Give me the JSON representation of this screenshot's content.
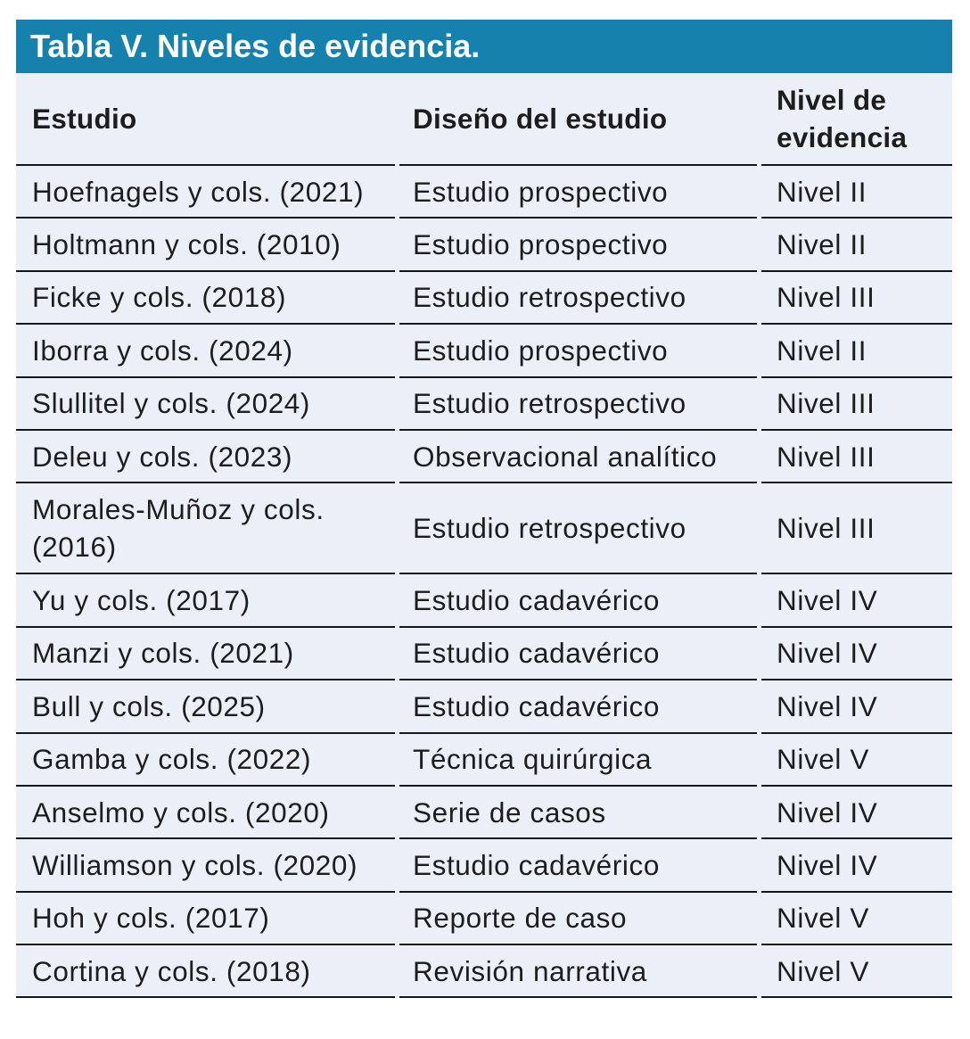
{
  "title": "Tabla V. Niveles de evidencia.",
  "colors": {
    "title_bar_bg": "#1781AE",
    "title_text": "#FFFFFF",
    "body_bg": "#EBEFF7",
    "rule": "#16161E",
    "text": "#1D1D1D"
  },
  "table": {
    "columns": [
      {
        "label": "Estudio"
      },
      {
        "label": "Diseño del estudio"
      },
      {
        "label": "Nivel de evidencia"
      }
    ],
    "rows": [
      {
        "study": "Hoefnagels y cols. (2021)",
        "design": "Estudio prospectivo",
        "level": "Nivel II"
      },
      {
        "study": "Holtmann y cols. (2010)",
        "design": "Estudio prospectivo",
        "level": "Nivel II"
      },
      {
        "study": "Ficke y cols. (2018)",
        "design": "Estudio retrospectivo",
        "level": "Nivel III"
      },
      {
        "study": "Iborra y cols. (2024)",
        "design": "Estudio prospectivo",
        "level": "Nivel II"
      },
      {
        "study": "Slullitel y cols. (2024)",
        "design": "Estudio retrospectivo",
        "level": "Nivel III"
      },
      {
        "study": "Deleu y cols. (2023)",
        "design": "Observacional analítico",
        "level": "Nivel III"
      },
      {
        "study": "Morales-Muñoz y cols. (2016)",
        "design": "Estudio retrospectivo",
        "level": "Nivel III"
      },
      {
        "study": "Yu y cols. (2017)",
        "design": "Estudio cadavérico",
        "level": "Nivel IV"
      },
      {
        "study": "Manzi y cols. (2021)",
        "design": "Estudio cadavérico",
        "level": "Nivel IV"
      },
      {
        "study": "Bull y cols. (2025)",
        "design": "Estudio cadavérico",
        "level": "Nivel IV"
      },
      {
        "study": "Gamba y cols. (2022)",
        "design": "Técnica quirúrgica",
        "level": "Nivel V"
      },
      {
        "study": "Anselmo y cols. (2020)",
        "design": "Serie de casos",
        "level": "Nivel IV"
      },
      {
        "study": "Williamson y cols. (2020)",
        "design": "Estudio cadavérico",
        "level": "Nivel IV"
      },
      {
        "study": "Hoh y cols. (2017)",
        "design": "Reporte de caso",
        "level": "Nivel V"
      },
      {
        "study": "Cortina y cols. (2018)",
        "design": "Revisión narrativa",
        "level": "Nivel V"
      }
    ]
  }
}
